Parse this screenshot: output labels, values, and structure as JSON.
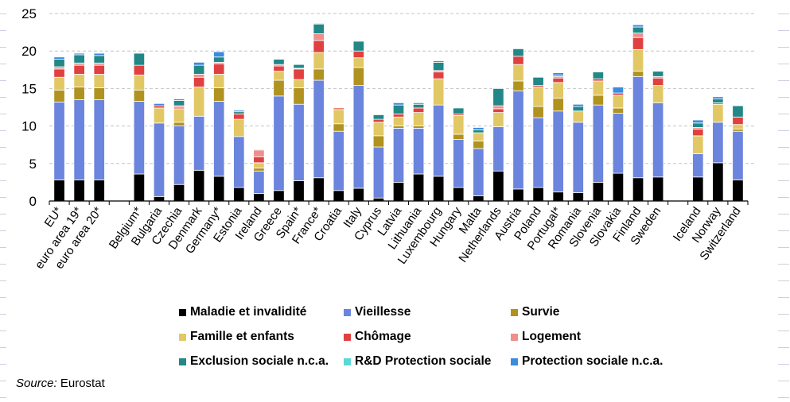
{
  "chart_data": {
    "type": "bar",
    "stacked": true,
    "title": "",
    "xlabel": "",
    "ylabel": "",
    "ylim": [
      0,
      25
    ],
    "yticks": [
      0,
      5,
      10,
      15,
      20,
      25
    ],
    "grid": true,
    "legend_position": "bottom",
    "categories": [
      "EU*",
      "euro area 19*",
      "euro area 20*",
      "",
      "Belgium*",
      "Bulgaria",
      "Czechia",
      "Denmark",
      "Germany*",
      "Estonia",
      "Ireland",
      "Greece",
      "Spain*",
      "France*",
      "Croatia",
      "Italy",
      "Cyprus",
      "Latvia",
      "Lithuania",
      "Luxembourg",
      "Hungary",
      "Malta",
      "Netherlands",
      "Austria",
      "Poland",
      "Portugal*",
      "Romania",
      "Slovenia",
      "Slovakia",
      "Finland",
      "Sweden",
      "",
      "Iceland",
      "Norway",
      "Switzerland"
    ],
    "series": [
      {
        "name": "Maladie et invalidité",
        "color": "#000000",
        "values": [
          2.8,
          2.8,
          2.8,
          null,
          3.6,
          0.6,
          2.2,
          4.1,
          3.3,
          1.8,
          1.0,
          1.4,
          2.7,
          3.1,
          1.4,
          1.7,
          0.4,
          2.5,
          3.6,
          3.3,
          1.8,
          0.7,
          4.0,
          1.6,
          1.8,
          1.2,
          1.1,
          2.5,
          3.7,
          3.1,
          3.2,
          null,
          3.2,
          5.1,
          2.8
        ]
      },
      {
        "name": "Vieillesse",
        "color": "#6b84dd",
        "values": [
          10.4,
          10.7,
          10.7,
          null,
          9.7,
          9.8,
          7.8,
          7.2,
          10.0,
          6.8,
          3.0,
          12.6,
          10.2,
          13.0,
          7.9,
          13.7,
          6.8,
          7.2,
          6.1,
          9.5,
          6.4,
          6.3,
          5.9,
          13.1,
          9.3,
          10.8,
          9.4,
          10.3,
          8.0,
          13.5,
          9.9,
          null,
          3.1,
          5.4,
          6.5
        ]
      },
      {
        "name": "Survie",
        "color": "#b0921f",
        "values": [
          1.6,
          1.7,
          1.6,
          null,
          1.5,
          0.0,
          0.5,
          0.0,
          1.8,
          0.0,
          0.4,
          2.1,
          2.2,
          1.5,
          1.0,
          2.4,
          1.5,
          0.3,
          0.3,
          0.0,
          0.7,
          1.0,
          0.0,
          1.3,
          1.5,
          1.7,
          0.0,
          1.3,
          0.7,
          0.7,
          0.0,
          null,
          0.0,
          0.0,
          0.3
        ]
      },
      {
        "name": "Famille et enfants",
        "color": "#e2c865",
        "values": [
          1.7,
          1.7,
          1.8,
          null,
          2.0,
          2.0,
          1.8,
          3.9,
          1.8,
          2.3,
          0.7,
          1.2,
          1.1,
          2.2,
          1.9,
          1.3,
          1.8,
          1.2,
          1.8,
          3.5,
          2.5,
          1.1,
          1.9,
          2.2,
          2.6,
          2.1,
          1.5,
          1.9,
          1.7,
          2.9,
          2.3,
          null,
          2.4,
          2.4,
          0.6
        ]
      },
      {
        "name": "Chômage",
        "color": "#e04040",
        "values": [
          1.1,
          1.2,
          1.2,
          null,
          1.3,
          0.3,
          0.2,
          1.3,
          1.4,
          0.7,
          0.8,
          0.7,
          1.4,
          1.6,
          0.2,
          0.9,
          0.4,
          0.4,
          0.6,
          0.9,
          0.2,
          0.0,
          0.5,
          1.1,
          0.2,
          0.6,
          0.0,
          0.3,
          0.3,
          1.6,
          1.0,
          null,
          0.9,
          0.2,
          1.0
        ]
      },
      {
        "name": "Logement",
        "color": "#ee8f8c",
        "values": [
          0.3,
          0.3,
          0.3,
          null,
          0.0,
          0.0,
          0.2,
          0.4,
          0.2,
          0.0,
          0.9,
          0.2,
          0.1,
          0.9,
          0.0,
          0.0,
          0.0,
          0.0,
          0.0,
          0.2,
          0.0,
          0.0,
          0.4,
          0.0,
          0.0,
          0.2,
          0.0,
          0.0,
          0.0,
          0.6,
          0.2,
          null,
          0.2,
          0.0,
          0.0
        ]
      },
      {
        "name": "Exclusion sociale n.c.a.",
        "color": "#218787",
        "values": [
          1.0,
          1.1,
          1.0,
          null,
          1.6,
          0.0,
          0.7,
          1.2,
          0.7,
          0.3,
          0.0,
          0.7,
          0.5,
          1.3,
          0.0,
          1.3,
          0.6,
          1.2,
          0.5,
          1.1,
          0.8,
          0.4,
          2.3,
          1.0,
          1.1,
          0.2,
          0.6,
          0.9,
          0.0,
          0.8,
          0.7,
          null,
          0.6,
          0.5,
          1.5
        ]
      },
      {
        "name": "R&D Protection sociale",
        "color": "#5bd8d6",
        "values": [
          0.0,
          0.0,
          0.0,
          null,
          0.0,
          0.0,
          0.0,
          0.0,
          0.0,
          0.0,
          0.0,
          0.0,
          0.0,
          0.0,
          0.0,
          0.0,
          0.0,
          0.0,
          0.0,
          0.0,
          0.0,
          0.0,
          0.0,
          0.0,
          0.0,
          0.0,
          0.0,
          0.0,
          0.0,
          0.0,
          0.0,
          null,
          0.0,
          0.0,
          0.0
        ]
      },
      {
        "name": "Protection sociale n.c.a.",
        "color": "#3b8be0",
        "values": [
          0.3,
          0.2,
          0.3,
          null,
          0.0,
          0.3,
          0.2,
          0.4,
          0.7,
          0.2,
          0.1,
          0.0,
          0.0,
          0.1,
          0.0,
          0.0,
          0.0,
          0.3,
          0.2,
          0.2,
          0.0,
          0.3,
          0.0,
          0.0,
          0.0,
          0.3,
          0.3,
          0.0,
          0.8,
          0.3,
          0.0,
          null,
          0.4,
          0.3,
          0.0
        ]
      }
    ]
  },
  "legend": {
    "items": [
      {
        "label": "Maladie et invalidité",
        "color": "#000000"
      },
      {
        "label": "Vieillesse",
        "color": "#6b84dd"
      },
      {
        "label": "Survie",
        "color": "#b0921f"
      },
      {
        "label": "Famille et enfants",
        "color": "#e2c865"
      },
      {
        "label": "Chômage",
        "color": "#e04040"
      },
      {
        "label": "Logement",
        "color": "#ee8f8c"
      },
      {
        "label": "Exclusion sociale n.c.a.",
        "color": "#218787"
      },
      {
        "label": "R&D Protection sociale",
        "color": "#5bd8d6"
      },
      {
        "label": "Protection sociale n.c.a.",
        "color": "#3b8be0"
      }
    ]
  },
  "source": {
    "prefix": "Source:",
    "text": " Eurostat"
  }
}
